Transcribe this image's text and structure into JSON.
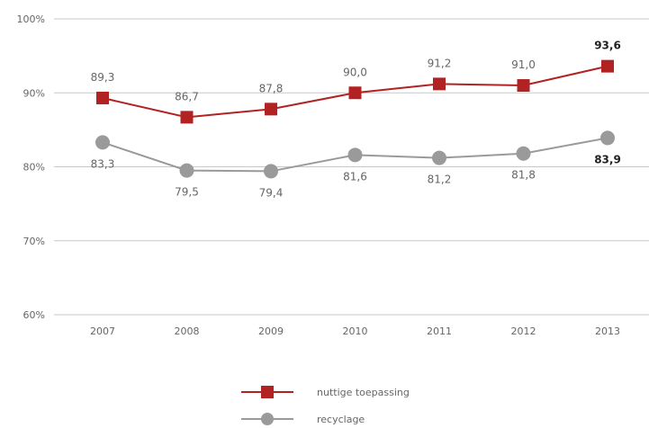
{
  "chart_data": {
    "type": "line",
    "categories": [
      "2007",
      "2008",
      "2009",
      "2010",
      "2011",
      "2012",
      "2013"
    ],
    "ylim": [
      60,
      100
    ],
    "yticks": [
      "60%",
      "70%",
      "80%",
      "90%",
      "100%"
    ],
    "grid": true,
    "legend_position": "bottom-center",
    "series": [
      {
        "name": "nuttige toepassing",
        "color": "#b22222",
        "marker": "square",
        "values": [
          89.3,
          86.7,
          87.8,
          90.0,
          91.2,
          91.0,
          93.6
        ],
        "labels": [
          "89,3",
          "86,7",
          "87,8",
          "90,0",
          "91,2",
          "91,0",
          "93,6"
        ],
        "bold_last": true,
        "label_position": "above"
      },
      {
        "name": "recyclage",
        "color": "#9a9a9a",
        "marker": "circle",
        "values": [
          83.3,
          79.5,
          79.4,
          81.6,
          81.2,
          81.8,
          83.9
        ],
        "labels": [
          "83,3",
          "79,5",
          "79,4",
          "81,6",
          "81,2",
          "81,8",
          "83,9"
        ],
        "bold_last": true,
        "label_position": "below"
      }
    ]
  }
}
